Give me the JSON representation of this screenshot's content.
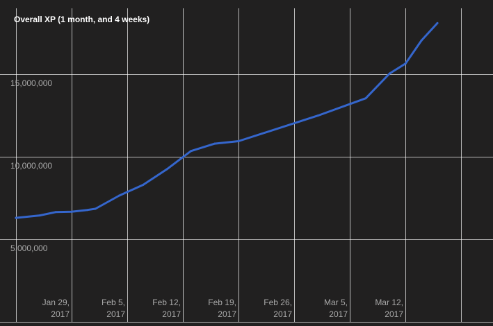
{
  "chart_data": {
    "type": "line",
    "title": "Overall XP (1 month, and 4 weeks)",
    "xlabel": "",
    "ylabel": "",
    "grid": true,
    "colors": {
      "background": "#212020",
      "grid": "#ffffff",
      "line": "#3566cc",
      "text": "#a9a9a9",
      "title": "#ffffff"
    },
    "x_range": [
      "2017-01-20",
      "2017-03-23"
    ],
    "ylim": [
      0,
      19000000
    ],
    "y_ticks": [
      {
        "value": 5000000,
        "label": "5,000,000"
      },
      {
        "value": 10000000,
        "label": "10,000,000"
      },
      {
        "value": 15000000,
        "label": "15,000,000"
      }
    ],
    "x_ticks": [
      {
        "date": "2017-01-29",
        "line1": "Jan 29,",
        "line2": "2017"
      },
      {
        "date": "2017-02-05",
        "line1": "Feb 5,",
        "line2": "2017"
      },
      {
        "date": "2017-02-12",
        "line1": "Feb 12,",
        "line2": "2017"
      },
      {
        "date": "2017-02-19",
        "line1": "Feb 19,",
        "line2": "2017"
      },
      {
        "date": "2017-02-26",
        "line1": "Feb 26,",
        "line2": "2017"
      },
      {
        "date": "2017-03-05",
        "line1": "Mar 5,",
        "line2": "2017"
      },
      {
        "date": "2017-03-12",
        "line1": "Mar 12,",
        "line2": "2017"
      }
    ],
    "series": [
      {
        "points": [
          {
            "x": "2017-01-22",
            "y": 6300000
          },
          {
            "x": "2017-01-25",
            "y": 6450000
          },
          {
            "x": "2017-01-27",
            "y": 6650000
          },
          {
            "x": "2017-01-29",
            "y": 6670000
          },
          {
            "x": "2017-01-31",
            "y": 6780000
          },
          {
            "x": "2017-02-01",
            "y": 6850000
          },
          {
            "x": "2017-02-04",
            "y": 7650000
          },
          {
            "x": "2017-02-07",
            "y": 8300000
          },
          {
            "x": "2017-02-10",
            "y": 9250000
          },
          {
            "x": "2017-02-13",
            "y": 10350000
          },
          {
            "x": "2017-02-16",
            "y": 10800000
          },
          {
            "x": "2017-02-19",
            "y": 10950000
          },
          {
            "x": "2017-03-01",
            "y": 12500000
          },
          {
            "x": "2017-03-07",
            "y": 13550000
          },
          {
            "x": "2017-03-10",
            "y": 15050000
          },
          {
            "x": "2017-03-12",
            "y": 15650000
          },
          {
            "x": "2017-03-14",
            "y": 17050000
          },
          {
            "x": "2017-03-16",
            "y": 18100000
          }
        ]
      }
    ]
  }
}
